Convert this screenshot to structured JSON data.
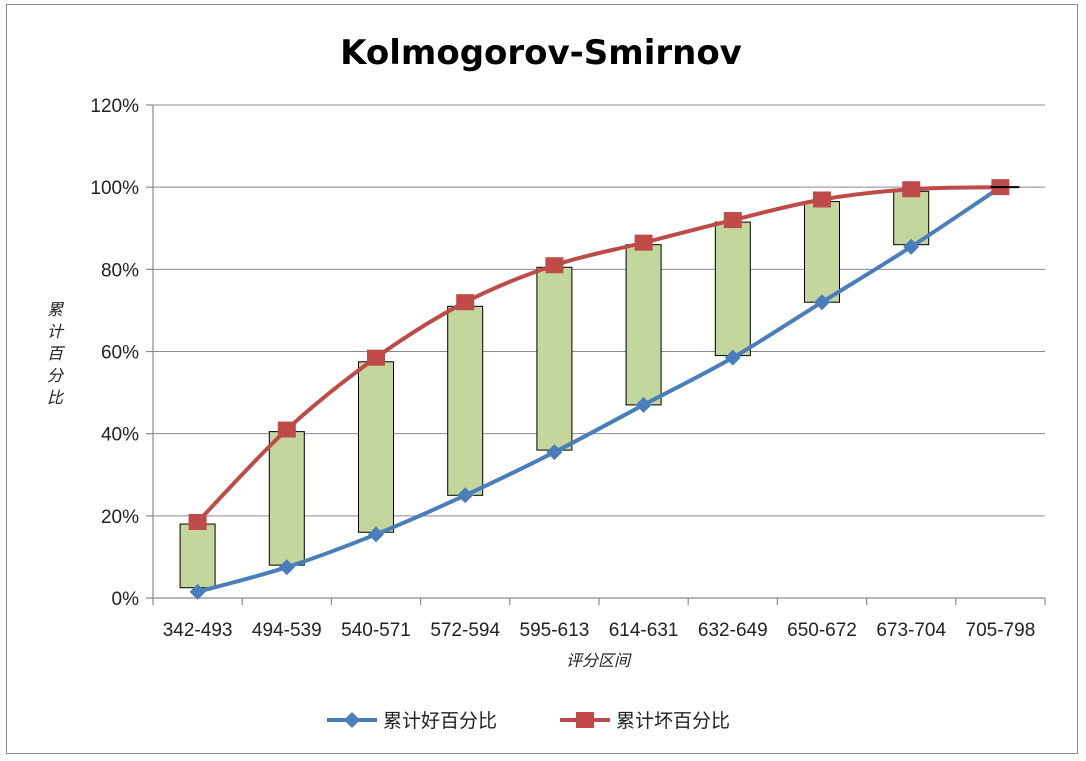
{
  "chart_data": {
    "type": "line",
    "title": "Kolmogorov-Smirnov",
    "xlabel": "评分区间",
    "ylabel_chars": [
      "累",
      "计",
      "百",
      "分",
      "比"
    ],
    "categories": [
      "342-493",
      "494-539",
      "540-571",
      "572-594",
      "595-613",
      "614-631",
      "632-649",
      "650-672",
      "673-704",
      "705-798"
    ],
    "y_ticks": [
      "0%",
      "20%",
      "40%",
      "60%",
      "80%",
      "100%",
      "120%"
    ],
    "ylim": [
      0,
      120
    ],
    "grid": true,
    "legend_position": "bottom",
    "series": [
      {
        "name": "累计好百分比",
        "color": "#4a7ebb",
        "marker": "diamond",
        "values": [
          1.5,
          7.5,
          15.5,
          25,
          35.5,
          47,
          58.5,
          72,
          85.5,
          100
        ]
      },
      {
        "name": "累计坏百分比",
        "color": "#be4b48",
        "marker": "square",
        "values": [
          18.5,
          41,
          58.5,
          72,
          81,
          86.5,
          92,
          97,
          99.5,
          100
        ]
      }
    ],
    "ks_bars": {
      "color": "#c3d69b",
      "lows": [
        2.5,
        8,
        16,
        25,
        36,
        47,
        59,
        72,
        86
      ],
      "highs": [
        18,
        40.5,
        57.5,
        71,
        80.5,
        86,
        91.5,
        96.5,
        99
      ]
    }
  }
}
